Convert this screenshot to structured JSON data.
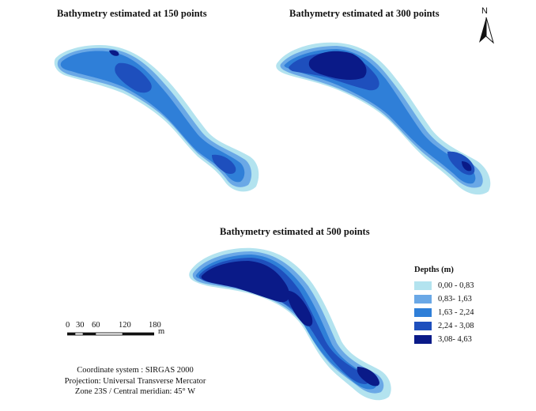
{
  "titles": {
    "map150": "Bathymetry estimated at 150 points",
    "map300": "Bathymetry estimated at 300 points",
    "map500": "Bathymetry estimated at 500 points"
  },
  "north_arrow": {
    "letter": "N"
  },
  "legend": {
    "title": "Depths (m)",
    "classes": [
      {
        "label": "0,00 - 0,83",
        "color": "#b3e3ef"
      },
      {
        "label": "0,83- 1,63",
        "color": "#6aa8e6"
      },
      {
        "label": "1,63 - 2,24",
        "color": "#2f7fd8"
      },
      {
        "label": "2,24 - 3,08",
        "color": "#1e4fbd"
      },
      {
        "label": "3,08- 4,63",
        "color": "#0a1a88"
      }
    ]
  },
  "scale_bar": {
    "ticks": [
      "0",
      "30",
      "60",
      "120",
      "180"
    ],
    "unit": "m"
  },
  "coordinate_info": {
    "line1": "Coordinate system : SIRGAS 2000",
    "line2": "Projection: Universal Transverse Mercator",
    "line3": "Zone 23S / Central meridian: 45° W"
  }
}
